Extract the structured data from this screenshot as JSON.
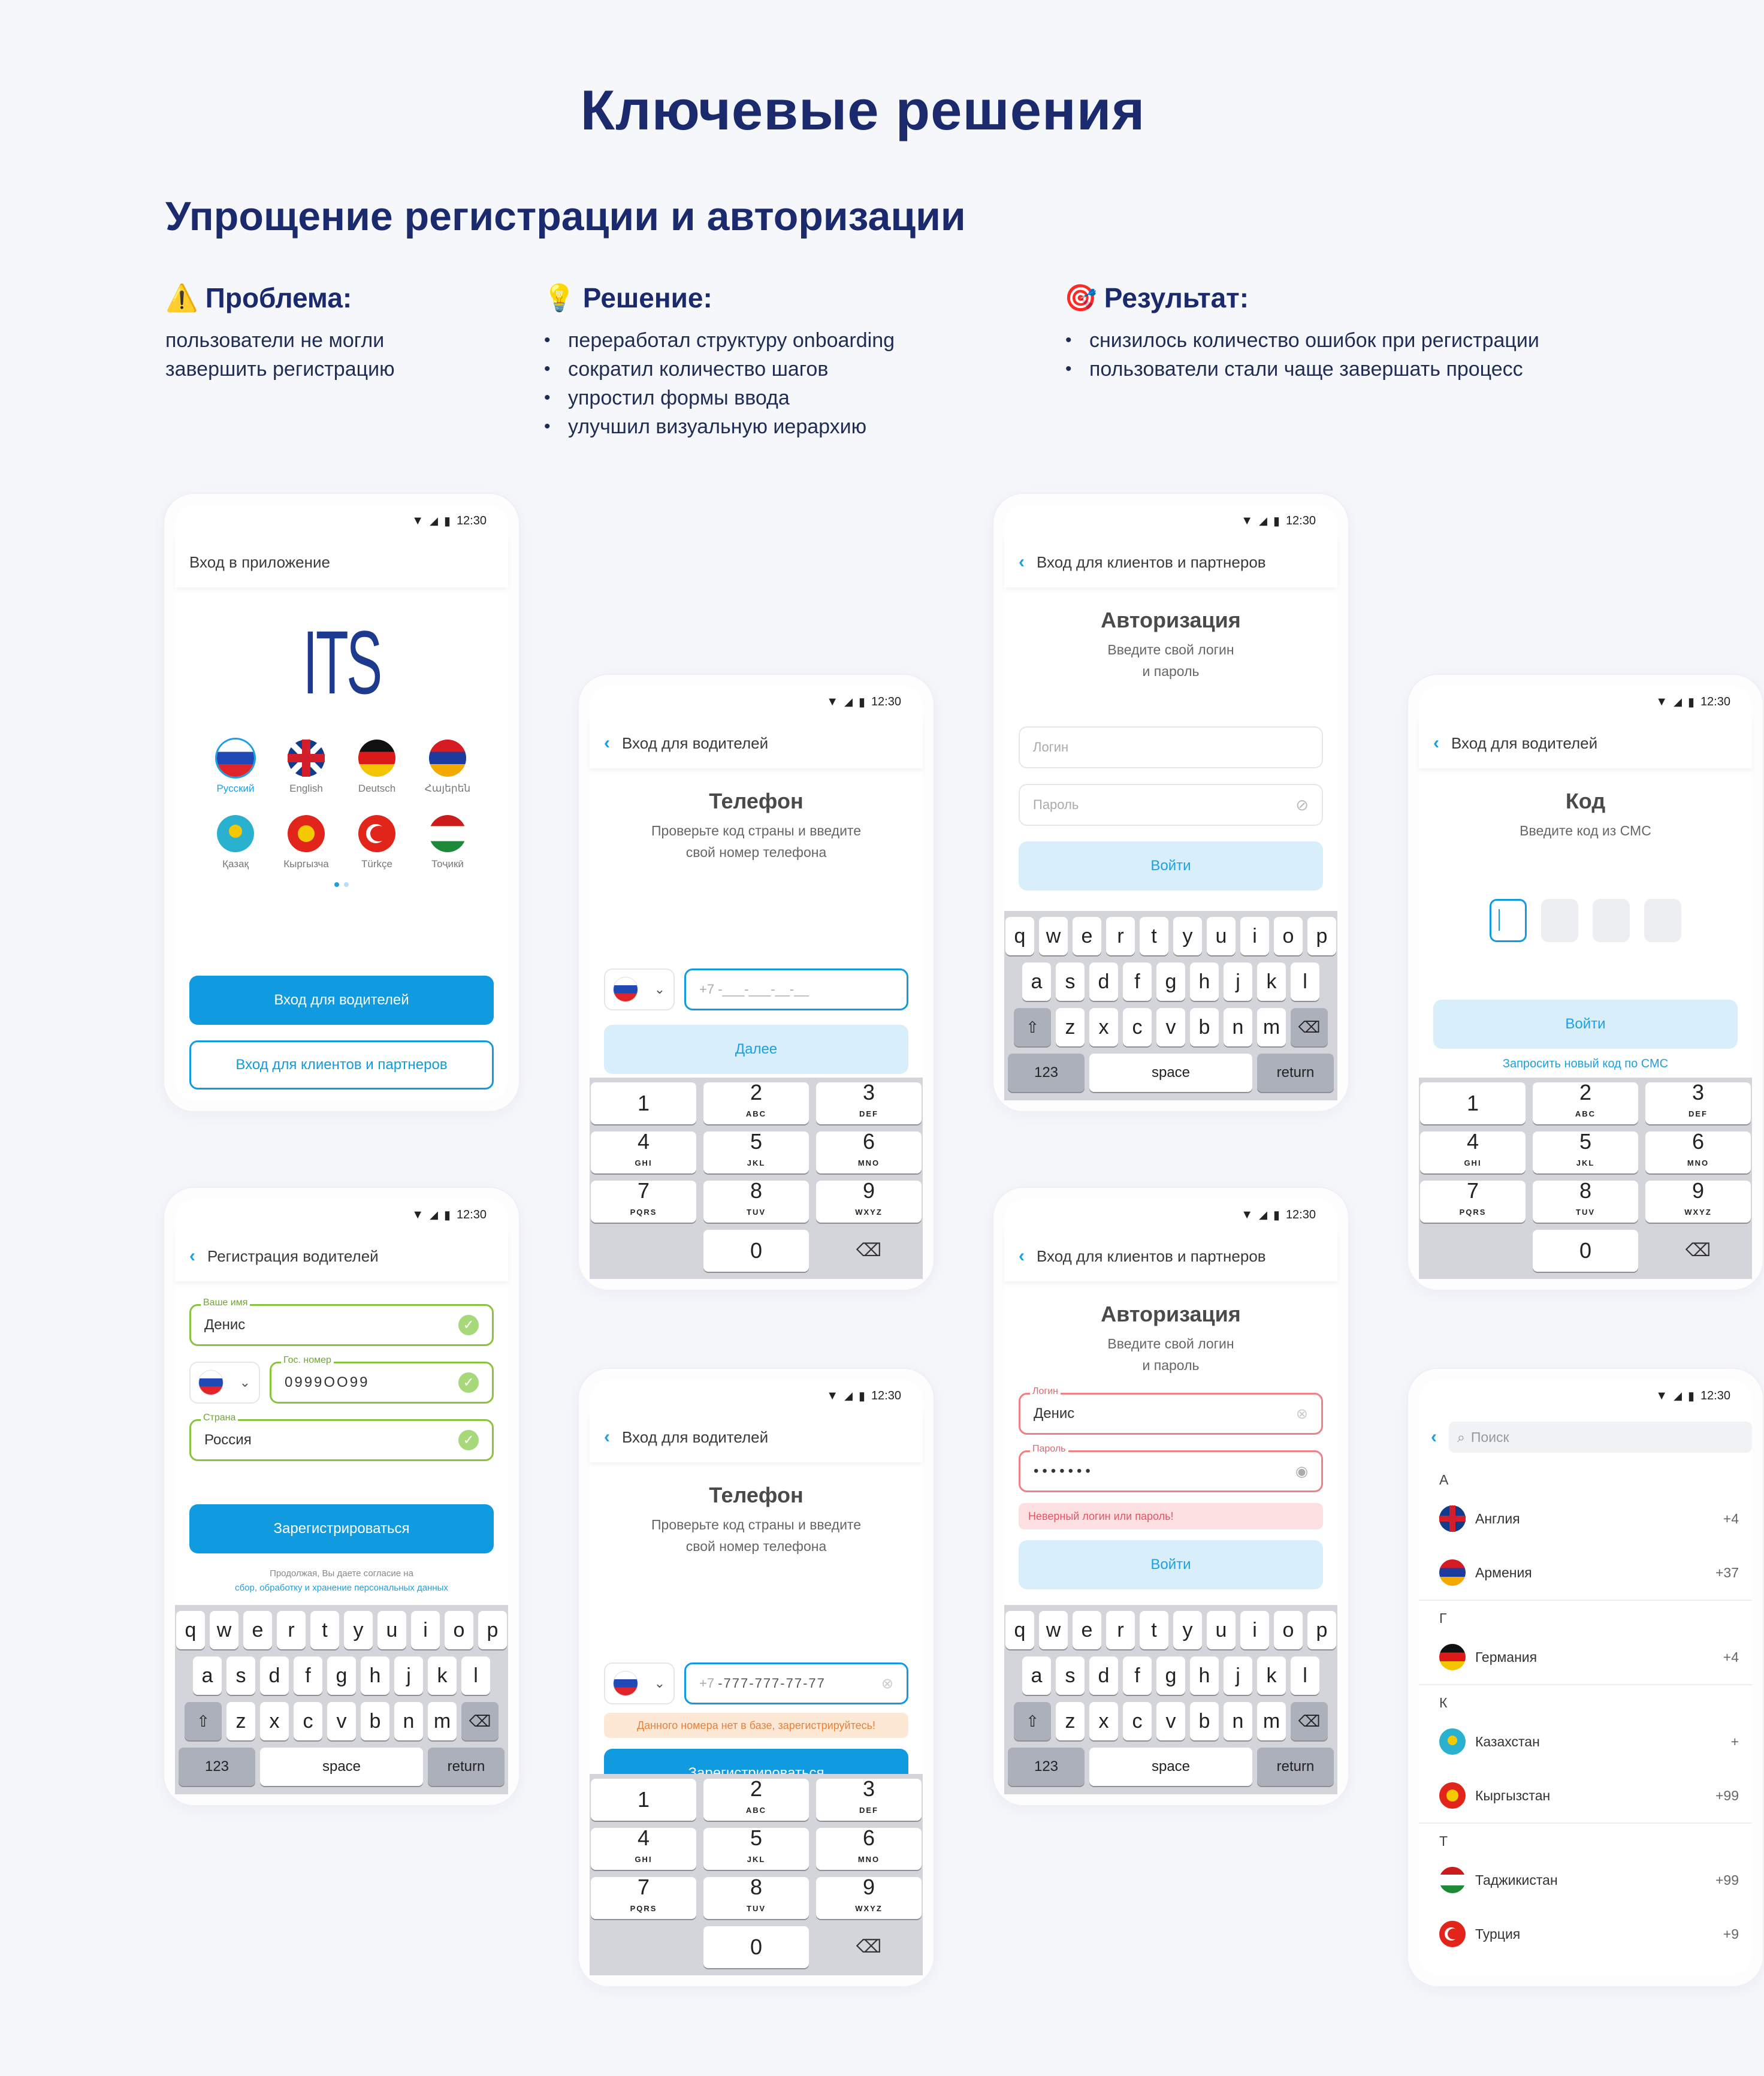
{
  "heading": "Ключевые решения",
  "section": "Упрощение регистрации и авторизации",
  "problem": {
    "title": "Проблема:",
    "text1": "пользователи не могли",
    "text2": "завершить регистрацию"
  },
  "solution": {
    "title": "Решение:",
    "items": [
      "переработал структуру onboarding",
      "сократил количество шагов",
      "упростил формы ввода",
      "улучшил визуальную иерархию"
    ]
  },
  "result": {
    "title": "Результат:",
    "items": [
      "снизилось количество ошибок при регистрации",
      "пользователи стали чаще завершать процесс"
    ]
  },
  "time": "12:30",
  "screen1": {
    "header": "Вход в приложение",
    "logo": "ITS",
    "langs": [
      "Русский",
      "English",
      "Deutsch",
      "Հայերեն",
      "Қазақ",
      "Кыргызча",
      "Türkçe",
      "Тоҷикӣ"
    ],
    "btn_driver": "Вход для водителей",
    "btn_client": "Вход для клиентов и партнеров"
  },
  "screen2": {
    "header": "Вход для водителей",
    "title": "Телефон",
    "sub1": "Проверьте код страны и введите",
    "sub2": "свой номер телефона",
    "phone_ph": "+7 -___-___-__-__",
    "btn": "Далее"
  },
  "screen3": {
    "header": "Вход для клиентов и партнеров",
    "title": "Авторизация",
    "sub1": "Введите свой логин",
    "sub2": "и пароль",
    "login_ph": "Логин",
    "pass_ph": "Пароль",
    "btn": "Войти"
  },
  "screen4": {
    "header": "Вход для водителей",
    "title": "Код",
    "sub": "Введите код из СМС",
    "btn": "Войти",
    "link": "Запросить новый код по СМС"
  },
  "screen5": {
    "header": "Регистрация водителей",
    "name_label": "Ваше имя",
    "name": "Денис",
    "plate_label": "Гос. номер",
    "plate": "0999OO99",
    "country_label": "Страна",
    "country": "Россия",
    "btn": "Зарегистрироваться",
    "note1": "Продолжая, Вы даете согласие на",
    "note2": "сбор, обработку и хранение персональных данных"
  },
  "screen6": {
    "header": "Вход для водителей",
    "title": "Телефон",
    "sub1": "Проверьте код страны и введите",
    "sub2": "свой номер телефона",
    "prefix": "+7",
    "phone": "-777-777-77-77",
    "error": "Данного номера нет в базе, зарегистрируйтесь!",
    "btn": "Зарегистрироваться"
  },
  "screen7": {
    "header": "Вход для клиентов и партнеров",
    "title": "Авторизация",
    "sub1": "Введите свой логин",
    "sub2": "и пароль",
    "login_label": "Логин",
    "login": "Денис",
    "pass_label": "Пароль",
    "pass": "•••••••",
    "error": "Неверный логин или пароль!",
    "btn": "Войти"
  },
  "screen8": {
    "search_ph": "Поиск",
    "groups": [
      {
        "letter": "А",
        "items": [
          {
            "name": "Англия",
            "code": "+4"
          },
          {
            "name": "Армения",
            "code": "+37"
          }
        ]
      },
      {
        "letter": "Г",
        "items": [
          {
            "name": "Германия",
            "code": "+4"
          }
        ]
      },
      {
        "letter": "К",
        "items": [
          {
            "name": "Казахстан",
            "code": "+"
          },
          {
            "name": "Кыргызстан",
            "code": "+99"
          }
        ]
      },
      {
        "letter": "Т",
        "items": [
          {
            "name": "Таджикистан",
            "code": "+99"
          },
          {
            "name": "Турция",
            "code": "+9"
          }
        ]
      }
    ]
  },
  "kb": {
    "row1": [
      "q",
      "w",
      "e",
      "r",
      "t",
      "y",
      "u",
      "i",
      "o",
      "p"
    ],
    "row2": [
      "a",
      "s",
      "d",
      "f",
      "g",
      "h",
      "j",
      "k",
      "l"
    ],
    "row3": [
      "z",
      "x",
      "c",
      "v",
      "b",
      "n",
      "m"
    ],
    "k123": "123",
    "space": "space",
    "ret": "return"
  },
  "np": [
    [
      "1",
      ""
    ],
    [
      "2",
      "ABC"
    ],
    [
      "3",
      "DEF"
    ],
    [
      "4",
      "GHI"
    ],
    [
      "5",
      "JKL"
    ],
    [
      "6",
      "MNO"
    ],
    [
      "7",
      "PQRS"
    ],
    [
      "8",
      "TUV"
    ],
    [
      "9",
      "WXYZ"
    ],
    [
      "0",
      ""
    ]
  ]
}
